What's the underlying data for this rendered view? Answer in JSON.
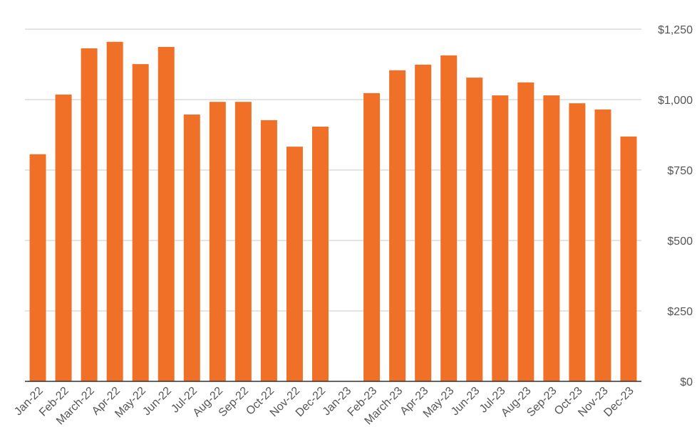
{
  "chart_data": {
    "type": "bar",
    "categories": [
      "Jan-22",
      "Feb-22",
      "March-22",
      "Apr-22",
      "May-22",
      "Jun-22",
      "Jul-22",
      "Aug-22",
      "Sep-22",
      "Oct-22",
      "Nov-22",
      "Dec-22",
      "Jan-23",
      "Feb-23",
      "March-23",
      "Apr-23",
      "May-23",
      "Jun-23",
      "Jul-23",
      "Aug-23",
      "Sep-23",
      "Oct-23",
      "Nov-23",
      "Dec-23"
    ],
    "values": [
      806,
      1018,
      1182,
      1205,
      1126,
      1187,
      947,
      992,
      992,
      927,
      833,
      904,
      null,
      1023,
      1104,
      1124,
      1157,
      1078,
      1015,
      1061,
      1015,
      987,
      965,
      869
    ],
    "color": "#f07028",
    "ylim": [
      0,
      1250
    ],
    "yticks": [
      {
        "value": 0,
        "label": "$0"
      },
      {
        "value": 250,
        "label": "$250"
      },
      {
        "value": 500,
        "label": "$500"
      },
      {
        "value": 750,
        "label": "$750"
      },
      {
        "value": 1000,
        "label": "$1,000"
      },
      {
        "value": 1250,
        "label": "$1,250"
      }
    ],
    "grid": true
  }
}
